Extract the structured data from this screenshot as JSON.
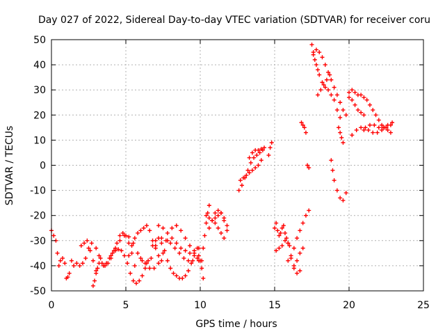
{
  "chart_data": {
    "type": "scatter",
    "title": "Day 027 of 2022, Sidereal Day-to-day VTEC variation (SDTVAR) for receiver coru",
    "xlabel": "GPS time / hours",
    "ylabel": "SDTVAR / TECUs",
    "xlim": [
      0,
      25
    ],
    "ylim": [
      -50,
      50
    ],
    "xticks": [
      0,
      5,
      10,
      15,
      20,
      25
    ],
    "yticks": [
      -50,
      -40,
      -30,
      -20,
      -10,
      0,
      10,
      20,
      30,
      40,
      50
    ],
    "xtick_labels": [
      "0",
      "5",
      "10",
      "15",
      "20",
      "25"
    ],
    "ytick_labels": [
      "-50",
      "-40",
      "-30",
      "-20",
      "-10",
      "0",
      "10",
      "20",
      "30",
      "40",
      "50"
    ],
    "grid": true,
    "marker": "plus",
    "marker_color": "#ff0000",
    "series": [
      {
        "name": "s1",
        "x": [
          0.0,
          0.15,
          0.3
        ],
        "y": [
          -26,
          -28,
          -30
        ]
      },
      {
        "name": "s2",
        "x": [
          0.4,
          0.5,
          0.6,
          0.75,
          0.9
        ],
        "y": [
          -35,
          -40,
          -38,
          -37,
          -39
        ]
      },
      {
        "name": "s3",
        "x": [
          1.0,
          1.1,
          1.2,
          1.35
        ],
        "y": [
          -45,
          -44.5,
          -43,
          -38
        ]
      },
      {
        "name": "s4",
        "x": [
          1.5,
          1.7,
          1.9,
          2.1,
          2.3,
          2.5,
          2.7
        ],
        "y": [
          -40,
          -39,
          -40,
          -39,
          -37,
          -33,
          -31
        ]
      },
      {
        "name": "s5",
        "x": [
          2.0,
          2.2,
          2.4,
          2.6,
          2.8,
          3.0
        ],
        "y": [
          -32,
          -31,
          -30,
          -34,
          -38,
          -42
        ]
      },
      {
        "name": "s6",
        "x": [
          2.8,
          2.9,
          3.0,
          3.1,
          3.2,
          3.3
        ],
        "y": [
          -48,
          -46,
          -43,
          -41,
          -39,
          -37
        ]
      },
      {
        "name": "s7",
        "x": [
          3.0,
          3.2,
          3.4,
          3.6,
          3.8,
          4.0,
          4.2,
          4.4,
          4.6,
          4.8,
          5.0,
          5.2,
          5.4,
          5.6
        ],
        "y": [
          -33,
          -36,
          -39,
          -40,
          -39,
          -37,
          -34,
          -31,
          -28,
          -27,
          -28,
          -31,
          -35,
          -40
        ]
      },
      {
        "name": "s8",
        "x": [
          3.5,
          3.7,
          3.9,
          4.1,
          4.3,
          4.5,
          4.7,
          4.9,
          5.1,
          5.3,
          5.5,
          5.7,
          5.9,
          6.1,
          6.3,
          6.5
        ],
        "y": [
          -40,
          -39,
          -37,
          -35,
          -34,
          -33.5,
          -34,
          -36,
          -39,
          -43,
          -46,
          -47,
          -46,
          -44,
          -41,
          -38
        ]
      },
      {
        "name": "s9",
        "x": [
          4.0,
          4.3,
          4.6,
          4.9,
          5.2,
          5.5,
          5.8,
          6.1,
          6.4,
          6.7,
          7.0
        ],
        "y": [
          -36,
          -33,
          -30,
          -28,
          -28.5,
          -31,
          -35,
          -38,
          -39,
          -37,
          -32
        ]
      },
      {
        "name": "s10",
        "x": [
          5.2,
          5.4,
          5.6,
          5.8,
          6.0,
          6.2,
          6.4,
          6.6,
          6.8,
          7.0,
          7.2,
          7.4
        ],
        "y": [
          -36,
          -32,
          -29,
          -27,
          -26,
          -25,
          -24,
          -26,
          -30,
          -33,
          -36,
          -38
        ]
      },
      {
        "name": "s11",
        "x": [
          6.0,
          6.3,
          6.6,
          6.9,
          7.2,
          7.5,
          7.8,
          8.1,
          8.4,
          8.7,
          9.0,
          9.3,
          9.6,
          9.9
        ],
        "y": [
          -37,
          -39,
          -41,
          -41,
          -39,
          -35,
          -30,
          -25,
          -24,
          -26,
          -29,
          -32,
          -35,
          -38
        ]
      },
      {
        "name": "s12",
        "x": [
          6.8,
          7.0,
          7.2,
          7.4,
          7.6,
          7.8,
          8.0,
          8.2,
          8.4,
          8.6,
          8.8,
          9.0,
          9.2,
          9.4,
          9.6,
          9.8
        ],
        "y": [
          -32,
          -30,
          -29,
          -31,
          -34,
          -38,
          -41,
          -43,
          -44,
          -45,
          -45,
          -44,
          -42,
          -39,
          -36,
          -33
        ]
      },
      {
        "name": "s13",
        "x": [
          7.2,
          7.5,
          7.8,
          8.1,
          8.4,
          8.7,
          9.0,
          9.3,
          9.6,
          9.9
        ],
        "y": [
          -24,
          -25,
          -27,
          -29,
          -31,
          -33,
          -34,
          -35,
          -34,
          -33
        ]
      },
      {
        "name": "s14",
        "x": [
          7.4,
          7.7,
          8.0,
          8.3,
          8.6,
          8.9,
          9.2,
          9.5,
          9.8
        ],
        "y": [
          -29,
          -30,
          -31,
          -33,
          -35,
          -37,
          -38,
          -38,
          -37
        ]
      },
      {
        "name": "s15",
        "x": [
          9.9,
          10.0,
          10.1,
          10.2
        ],
        "y": [
          -36,
          -38,
          -41,
          -45
        ]
      },
      {
        "name": "s16",
        "x": [
          10.1,
          10.2,
          10.3,
          10.4,
          10.5,
          10.6
        ],
        "y": [
          -38,
          -33,
          -28,
          -23,
          -19,
          -16
        ]
      },
      {
        "name": "s17",
        "x": [
          10.4,
          10.6,
          10.8,
          11.0,
          11.2,
          11.4,
          11.6
        ],
        "y": [
          -20,
          -21,
          -22,
          -23,
          -25,
          -27,
          -29
        ]
      },
      {
        "name": "s18",
        "x": [
          10.6,
          10.8,
          11.0,
          11.2,
          11.4,
          11.6,
          11.8
        ],
        "y": [
          -25,
          -22,
          -19,
          -18,
          -19,
          -22,
          -26
        ]
      },
      {
        "name": "s19",
        "x": [
          11.0,
          11.2,
          11.4,
          11.6,
          11.8
        ],
        "y": [
          -21,
          -20,
          -19,
          -21,
          -24
        ]
      },
      {
        "name": "s20",
        "x": [
          12.6,
          12.8,
          13.0,
          13.2,
          13.4,
          13.6,
          13.8,
          14.0,
          14.2
        ],
        "y": [
          -10,
          -8,
          -5,
          -2,
          1,
          3,
          4,
          5,
          6
        ]
      },
      {
        "name": "s21",
        "x": [
          12.7,
          12.9,
          13.1,
          13.3,
          13.5,
          13.7,
          13.9,
          14.1
        ],
        "y": [
          -6,
          -5,
          -4,
          -3,
          -2,
          -1,
          0,
          2
        ]
      },
      {
        "name": "s22",
        "x": [
          13.3,
          13.5,
          13.7,
          13.9,
          14.1,
          14.3
        ],
        "y": [
          3,
          5,
          6,
          6,
          6.5,
          7
        ]
      },
      {
        "name": "s23",
        "x": [
          14.6,
          14.7,
          14.8
        ],
        "y": [
          4,
          7,
          9
        ]
      },
      {
        "name": "s24",
        "x": [
          15.0,
          15.1,
          15.2,
          15.3,
          15.4,
          15.5,
          15.6,
          15.7,
          15.8,
          15.9,
          16.0
        ],
        "y": [
          -25,
          -23,
          -26,
          -28,
          -27,
          -25,
          -24,
          -27,
          -29,
          -31,
          -32
        ]
      },
      {
        "name": "s25",
        "x": [
          15.1,
          15.3,
          15.5,
          15.7,
          15.9,
          16.1,
          16.3,
          16.5,
          16.7
        ],
        "y": [
          -34,
          -33,
          -32,
          -30,
          -31,
          -36,
          -40,
          -43,
          -42
        ]
      },
      {
        "name": "s26",
        "x": [
          15.9,
          16.1,
          16.3,
          16.5,
          16.7,
          16.9,
          17.1,
          17.3
        ],
        "y": [
          -38,
          -37,
          -33,
          -29,
          -26,
          -23,
          -20,
          -18
        ]
      },
      {
        "name": "s27",
        "x": [
          16.3,
          16.5,
          16.7,
          16.9
        ],
        "y": [
          -41,
          -38,
          -35,
          -33
        ]
      },
      {
        "name": "s28",
        "x": [
          16.8,
          16.9,
          17.0,
          17.1
        ],
        "y": [
          17,
          16,
          15,
          13
        ]
      },
      {
        "name": "s29",
        "x": [
          17.2,
          17.3
        ],
        "y": [
          0,
          -1
        ]
      },
      {
        "name": "s30",
        "x": [
          17.5,
          17.6,
          17.7,
          17.8,
          17.9,
          18.0,
          18.2,
          18.4,
          18.6,
          18.8,
          19.0,
          19.2,
          19.4
        ],
        "y": [
          48,
          45,
          42,
          40,
          38,
          36,
          33,
          31,
          30,
          28,
          26,
          22,
          19
        ]
      },
      {
        "name": "s31",
        "x": [
          17.6,
          17.8,
          18.0,
          18.2,
          18.4,
          18.6,
          18.8,
          19.0,
          19.2,
          19.4,
          19.6,
          19.8
        ],
        "y": [
          44,
          46,
          45,
          43,
          40,
          37,
          34,
          31,
          28,
          25,
          22,
          20
        ]
      },
      {
        "name": "s32",
        "x": [
          17.9,
          18.1,
          18.3,
          18.5,
          18.7
        ],
        "y": [
          28,
          30,
          32,
          34,
          36
        ]
      },
      {
        "name": "s33",
        "x": [
          18.8,
          18.9,
          19.0,
          19.2,
          19.4,
          19.6,
          19.8
        ],
        "y": [
          2,
          -2,
          -6,
          -10,
          -13,
          -14,
          -11
        ]
      },
      {
        "name": "s34",
        "x": [
          19.3,
          19.4,
          19.5,
          19.6
        ],
        "y": [
          15,
          13,
          11,
          9
        ]
      },
      {
        "name": "s35",
        "x": [
          20.0,
          20.2,
          20.4,
          20.6,
          20.8,
          21.0,
          21.2,
          21.4,
          21.6,
          21.8,
          22.0,
          22.2,
          22.4,
          22.6,
          22.8
        ],
        "y": [
          29,
          30,
          29,
          28,
          28,
          27,
          26,
          24,
          22,
          20,
          18,
          16,
          15,
          14,
          13
        ]
      },
      {
        "name": "s36",
        "x": [
          20.0,
          20.2,
          20.4,
          20.6,
          20.8,
          21.0
        ],
        "y": [
          27,
          26,
          24,
          22,
          21,
          20
        ]
      },
      {
        "name": "s37",
        "x": [
          20.2,
          20.5,
          20.8,
          21.1,
          21.4,
          21.7,
          22.0,
          22.3,
          22.6,
          22.9
        ],
        "y": [
          12,
          14,
          15,
          15,
          16,
          16,
          15,
          15,
          16,
          17
        ]
      },
      {
        "name": "s38",
        "x": [
          21.0,
          21.3,
          21.6,
          21.9,
          22.2,
          22.5,
          22.8
        ],
        "y": [
          14,
          14,
          13,
          13,
          14,
          15,
          16
        ]
      }
    ]
  }
}
